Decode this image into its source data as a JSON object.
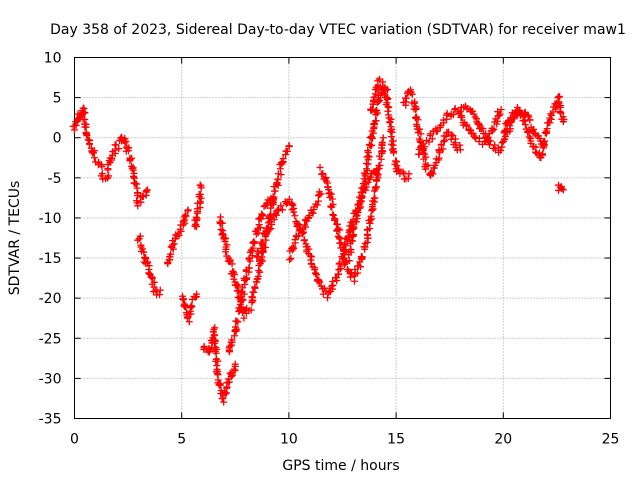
{
  "chart_data": {
    "type": "scatter",
    "title": "Day 358 of 2023, Sidereal Day-to-day VTEC variation (SDTVAR) for receiver maw1",
    "xlabel": "GPS time / hours",
    "ylabel": "SDTVAR / TECUs",
    "xlim": [
      0,
      25
    ],
    "ylim": [
      -35,
      10
    ],
    "grid": true,
    "x_ticks": [
      0,
      5,
      10,
      15,
      20,
      25
    ],
    "y_ticks": [
      -35,
      -30,
      -25,
      -20,
      -15,
      -10,
      -5,
      0,
      5,
      10
    ],
    "marker": "+",
    "marker_color": "#ff0000",
    "series": [
      {
        "name": "SDTVAR",
        "segments": [
          {
            "x": [
              0.0,
              0.2,
              0.3,
              0.4,
              0.5,
              0.7,
              0.9,
              1.1,
              1.3,
              1.5,
              1.7,
              1.9,
              2.1,
              2.3,
              2.5,
              2.7,
              2.9,
              3.0,
              3.2,
              3.4
            ],
            "y": [
              1.0,
              3.0,
              2.5,
              3.8,
              1.5,
              -1.0,
              -2.0,
              -3.0,
              -4.5,
              -5.0,
              -3.0,
              -1.5,
              -0.5,
              0.0,
              -2.0,
              -3.5,
              -7.0,
              -8.0,
              -7.5,
              -6.5
            ]
          },
          {
            "x": [
              3.0,
              3.2,
              3.4,
              3.6,
              3.8,
              4.0
            ],
            "y": [
              -12.5,
              -14.0,
              -16.0,
              -18.0,
              -19.5,
              -19.0
            ]
          },
          {
            "x": [
              4.3,
              4.5,
              4.7,
              4.9,
              5.1,
              5.3
            ],
            "y": [
              -16.0,
              -14.0,
              -12.5,
              -11.5,
              -10.5,
              -9.0
            ]
          },
          {
            "x": [
              5.0,
              5.1,
              5.3,
              5.5,
              5.7
            ],
            "y": [
              -19.5,
              -21.0,
              -22.5,
              -20.5,
              -19.5
            ]
          },
          {
            "x": [
              5.6,
              5.7,
              5.8,
              5.9
            ],
            "y": [
              -11.5,
              -10.0,
              -8.5,
              -6.0
            ]
          },
          {
            "x": [
              6.0,
              6.2,
              6.4,
              6.5,
              6.6,
              6.7,
              6.8,
              6.9,
              7.0,
              7.1,
              7.2,
              7.3,
              7.4,
              7.5
            ],
            "y": [
              -26.0,
              -27.0,
              -25.5,
              -24.0,
              -27.0,
              -29.5,
              -31.5,
              -32.5,
              -32.0,
              -31.0,
              -30.0,
              -29.5,
              -29.0,
              -28.5
            ]
          },
          {
            "x": [
              6.8,
              7.0,
              7.3,
              7.6,
              7.9,
              8.2,
              8.5,
              8.8,
              9.1,
              9.4,
              9.7,
              10.0
            ],
            "y": [
              -10.0,
              -13.0,
              -16.0,
              -19.0,
              -22.0,
              -21.0,
              -18.0,
              -14.0,
              -10.0,
              -6.0,
              -3.0,
              -1.0
            ]
          },
          {
            "x": [
              7.2,
              7.5,
              7.8,
              8.1,
              8.4,
              8.7,
              9.0,
              9.3
            ],
            "y": [
              -27.0,
              -24.0,
              -20.0,
              -16.0,
              -12.5,
              -10.0,
              -8.0,
              -7.5
            ]
          },
          {
            "x": [
              8.5,
              8.8,
              9.1,
              9.4,
              9.7,
              10.0,
              10.2,
              10.4,
              10.6,
              10.8,
              11.0,
              11.2,
              11.4,
              11.6,
              11.8,
              12.0
            ],
            "y": [
              -15.0,
              -13.0,
              -11.0,
              -9.5,
              -8.5,
              -8.0,
              -9.0,
              -10.5,
              -12.0,
              -13.5,
              -15.0,
              -16.5,
              -18.0,
              -19.0,
              -19.5,
              -18.5
            ]
          },
          {
            "x": [
              10.0,
              10.3,
              10.6,
              10.9,
              11.2,
              11.5
            ],
            "y": [
              -15.0,
              -13.0,
              -11.5,
              -10.0,
              -8.5,
              -7.0
            ]
          },
          {
            "x": [
              11.5,
              11.8,
              12.1,
              12.4,
              12.7,
              13.0,
              13.3,
              13.6,
              13.9,
              14.2,
              14.4
            ],
            "y": [
              -4.0,
              -6.0,
              -9.5,
              -13.0,
              -16.0,
              -17.5,
              -16.0,
              -13.0,
              -9.0,
              -4.0,
              0.0
            ]
          },
          {
            "x": [
              12.0,
              12.3,
              12.6,
              12.9,
              13.2,
              13.5,
              13.8,
              14.1
            ],
            "y": [
              -18.5,
              -17.0,
              -14.0,
              -11.0,
              -8.5,
              -6.5,
              -5.0,
              -4.0
            ]
          },
          {
            "x": [
              12.8,
              13.0,
              13.2,
              13.4,
              13.6,
              13.8,
              14.0,
              14.2,
              14.4,
              14.6
            ],
            "y": [
              -15.0,
              -12.0,
              -9.5,
              -7.0,
              -4.0,
              -1.0,
              2.0,
              5.0,
              6.5,
              6.0
            ]
          },
          {
            "x": [
              13.8,
              14.0,
              14.2,
              14.4,
              14.6,
              14.8,
              15.0,
              15.2,
              15.4,
              15.6
            ],
            "y": [
              3.0,
              5.0,
              7.0,
              6.5,
              4.0,
              0.0,
              -3.5,
              -4.5,
              -5.0,
              -4.5
            ]
          },
          {
            "x": [
              15.4,
              15.6,
              15.8,
              16.0,
              16.2,
              16.4,
              16.6,
              16.8,
              17.0,
              17.2,
              17.4,
              17.6,
              17.8,
              18.0
            ],
            "y": [
              4.0,
              6.0,
              4.5,
              2.0,
              -1.0,
              -3.5,
              -4.5,
              -3.5,
              -2.0,
              -0.5,
              0.5,
              0.0,
              -1.0,
              -1.5
            ]
          },
          {
            "x": [
              16.0,
              16.3,
              16.6,
              16.9,
              17.2,
              17.5,
              17.8,
              18.1,
              18.4,
              18.7,
              19.0,
              19.3,
              19.6,
              19.9
            ],
            "y": [
              -2.0,
              -1.0,
              0.0,
              1.0,
              2.0,
              3.0,
              3.5,
              2.5,
              1.0,
              0.0,
              -0.5,
              0.0,
              1.5,
              3.5
            ]
          },
          {
            "x": [
              18.0,
              18.3,
              18.6,
              18.9,
              19.2,
              19.5,
              19.8,
              20.1,
              20.4,
              20.7,
              21.0,
              21.3,
              21.6,
              21.9
            ],
            "y": [
              3.5,
              4.0,
              3.0,
              1.5,
              0.0,
              -1.0,
              -1.5,
              0.0,
              2.0,
              3.5,
              3.0,
              1.5,
              0.0,
              -1.0
            ]
          },
          {
            "x": [
              20.0,
              20.3,
              20.6,
              20.9,
              21.2,
              21.5,
              21.8,
              22.0,
              22.3,
              22.6,
              22.8
            ],
            "y": [
              0.5,
              2.0,
              3.5,
              2.5,
              0.5,
              -1.5,
              -2.5,
              1.0,
              3.0,
              5.0,
              2.0
            ]
          },
          {
            "x": [
              22.6,
              22.7,
              22.8
            ],
            "y": [
              -6.5,
              -6.0,
              -6.5
            ]
          }
        ]
      }
    ]
  }
}
